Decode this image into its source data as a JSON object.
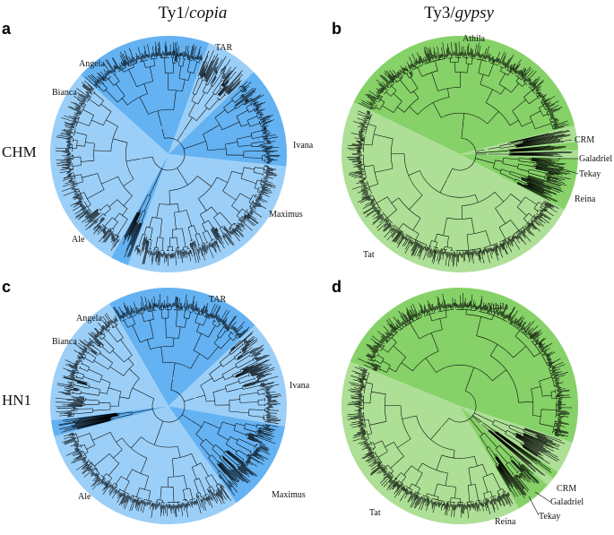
{
  "columns": {
    "left": {
      "prefix": "Ty1/",
      "italic": "copia"
    },
    "right": {
      "prefix": "Ty3/",
      "italic": "gypsy"
    }
  },
  "rows": {
    "top": "CHM",
    "bottom": "HN1"
  },
  "colors": {
    "copia_light": "#9ccff7",
    "copia_dark": "#64b2f2",
    "gypsy_light": "#addf96",
    "gypsy_dark": "#86d168",
    "branches": "#000000"
  },
  "panels": [
    {
      "letter": "a",
      "family": "copia",
      "clades": [
        {
          "name": "TAR",
          "tone": "dark"
        },
        {
          "name": "Ivana",
          "tone": "light"
        },
        {
          "name": "Maximus",
          "tone": "dark"
        },
        {
          "name": "Ale",
          "tone": "light"
        },
        {
          "name": "Bianca",
          "tone": "dark"
        },
        {
          "name": "Angela",
          "tone": "light"
        }
      ]
    },
    {
      "letter": "b",
      "family": "gypsy",
      "clades": [
        {
          "name": "Athila",
          "tone": "dark"
        },
        {
          "name": "CRM",
          "tone": "light"
        },
        {
          "name": "Galadriel",
          "tone": "dark"
        },
        {
          "name": "Tekay",
          "tone": "light"
        },
        {
          "name": "Reina",
          "tone": "dark"
        },
        {
          "name": "Tat",
          "tone": "light"
        }
      ]
    },
    {
      "letter": "c",
      "family": "copia",
      "clades": [
        {
          "name": "TAR",
          "tone": "dark"
        },
        {
          "name": "Ivana",
          "tone": "light"
        },
        {
          "name": "Maximus",
          "tone": "dark"
        },
        {
          "name": "Ale",
          "tone": "light"
        },
        {
          "name": "Bianca",
          "tone": "dark"
        },
        {
          "name": "Angela",
          "tone": "light"
        }
      ]
    },
    {
      "letter": "d",
      "family": "gypsy",
      "clades": [
        {
          "name": "Athila",
          "tone": "dark"
        },
        {
          "name": "CRM",
          "tone": "light"
        },
        {
          "name": "Galadriel",
          "tone": "dark"
        },
        {
          "name": "Tekay",
          "tone": "light"
        },
        {
          "name": "Reina",
          "tone": "dark"
        },
        {
          "name": "Tat",
          "tone": "light"
        }
      ]
    }
  ]
}
